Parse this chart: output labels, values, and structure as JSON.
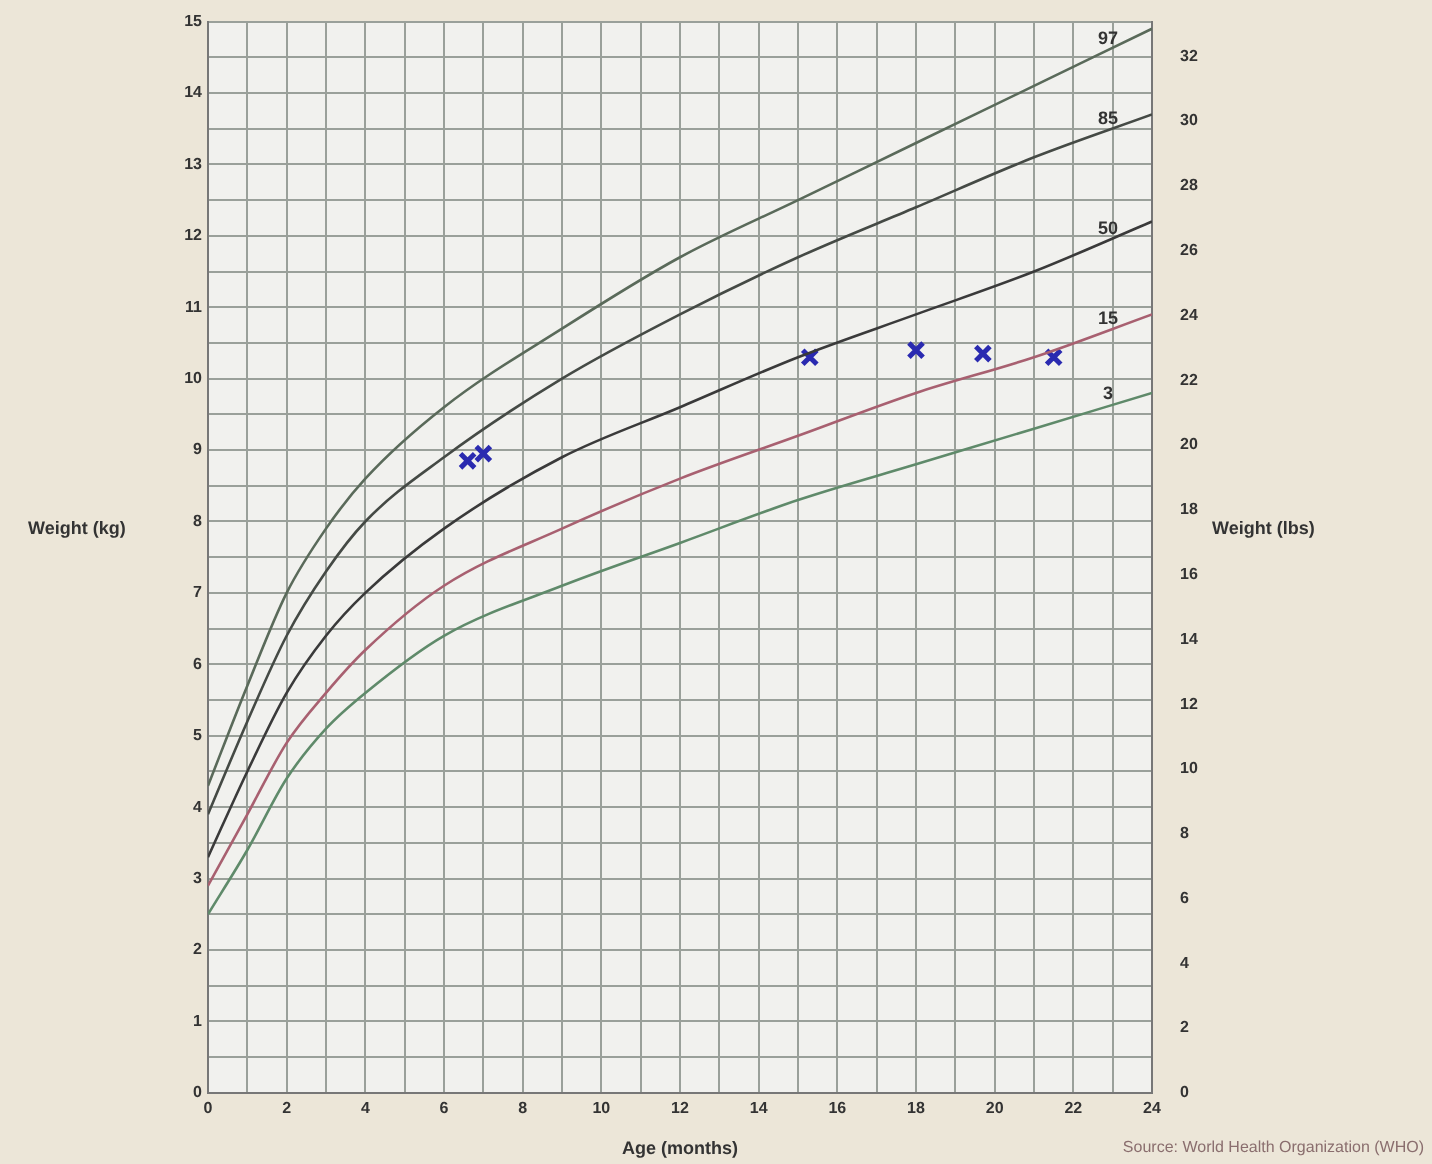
{
  "chart_data": {
    "type": "line",
    "xlabel": "Age (months)",
    "ylabel": "Weight (kg)",
    "y2label": "Weight (lbs)",
    "xlim": [
      0,
      24
    ],
    "xticks": [
      0,
      {
        "value": 1,
        "label": null
      },
      2,
      {
        "value": 3,
        "label": null
      },
      4,
      {
        "value": 5,
        "label": null
      },
      6,
      {
        "value": 7,
        "label": null
      },
      8,
      {
        "value": 9,
        "label": null
      },
      10,
      {
        "value": 11,
        "label": null
      },
      12,
      {
        "value": 13,
        "label": null
      },
      14,
      {
        "value": 15,
        "label": null
      },
      16,
      {
        "value": 17,
        "label": null
      },
      18,
      {
        "value": 19,
        "label": null
      },
      20,
      {
        "value": 21,
        "label": null
      },
      22,
      {
        "value": 23,
        "label": null
      },
      24
    ],
    "ylim": [
      0,
      15
    ],
    "yticks": [
      0,
      {
        "value": 0.5,
        "label": null
      },
      1,
      {
        "value": 1.5,
        "label": null
      },
      2,
      {
        "value": 2.5,
        "label": null
      },
      3,
      {
        "value": 3.5,
        "label": null
      },
      4,
      {
        "value": 4.5,
        "label": null
      },
      5,
      {
        "value": 5.5,
        "label": null
      },
      6,
      {
        "value": 6.5,
        "label": null
      },
      7,
      {
        "value": 7.5,
        "label": null
      },
      8,
      {
        "value": 8.5,
        "label": null
      },
      9,
      {
        "value": 9.5,
        "label": null
      },
      10,
      {
        "value": 10.5,
        "label": null
      },
      11,
      {
        "value": 11.5,
        "label": null
      },
      12,
      {
        "value": 12.5,
        "label": null
      },
      13,
      {
        "value": 13.5,
        "label": null
      },
      14,
      {
        "value": 14.5,
        "label": null
      },
      15
    ],
    "y2lim": [
      0,
      33.07
    ],
    "y2ticks": [
      0,
      2,
      4,
      6,
      8,
      10,
      12,
      14,
      16,
      18,
      20,
      22,
      24,
      26,
      28,
      30,
      32
    ],
    "grid": true,
    "legend": false,
    "marker": "none",
    "line_style": "solid",
    "series": [
      {
        "name": "97",
        "color": "#5a6a5a",
        "x": [
          0,
          1,
          2,
          3,
          4,
          6,
          9,
          12,
          15,
          18,
          21,
          24
        ],
        "values": [
          4.3,
          5.7,
          7.0,
          7.9,
          8.6,
          9.6,
          10.7,
          11.7,
          12.5,
          13.3,
          14.1,
          14.9
        ]
      },
      {
        "name": "85",
        "color": "#454a45",
        "x": [
          0,
          1,
          2,
          3,
          4,
          6,
          9,
          12,
          15,
          18,
          21,
          24
        ],
        "values": [
          3.9,
          5.2,
          6.4,
          7.3,
          8.0,
          8.9,
          10.0,
          10.9,
          11.7,
          12.4,
          13.1,
          13.7
        ]
      },
      {
        "name": "50",
        "color": "#3a3a3a",
        "x": [
          0,
          1,
          2,
          3,
          4,
          6,
          9,
          12,
          15,
          18,
          21,
          24
        ],
        "values": [
          3.3,
          4.5,
          5.6,
          6.4,
          7.0,
          7.9,
          8.9,
          9.6,
          10.3,
          10.9,
          11.5,
          12.2
        ]
      },
      {
        "name": "15",
        "color": "#a86070",
        "x": [
          0,
          1,
          2,
          3,
          4,
          6,
          9,
          12,
          15,
          18,
          21,
          24
        ],
        "values": [
          2.9,
          3.9,
          4.9,
          5.6,
          6.2,
          7.1,
          7.9,
          8.6,
          9.2,
          9.8,
          10.3,
          10.9
        ]
      },
      {
        "name": "3",
        "color": "#5f8a6a",
        "x": [
          0,
          1,
          2,
          3,
          4,
          6,
          9,
          12,
          15,
          18,
          21,
          24
        ],
        "values": [
          2.5,
          3.4,
          4.4,
          5.1,
          5.6,
          6.4,
          7.1,
          7.7,
          8.3,
          8.8,
          9.3,
          9.8
        ]
      },
      {
        "type": "scatter",
        "marker": "cross",
        "color": "#2a2ab0",
        "x": [
          6.6,
          7.0,
          15.3,
          18.0,
          19.7,
          21.5
        ],
        "values": [
          8.85,
          8.95,
          10.3,
          10.4,
          10.35,
          10.3
        ]
      }
    ],
    "annotations": [
      "Source: World Health Organization (WHO)"
    ]
  }
}
